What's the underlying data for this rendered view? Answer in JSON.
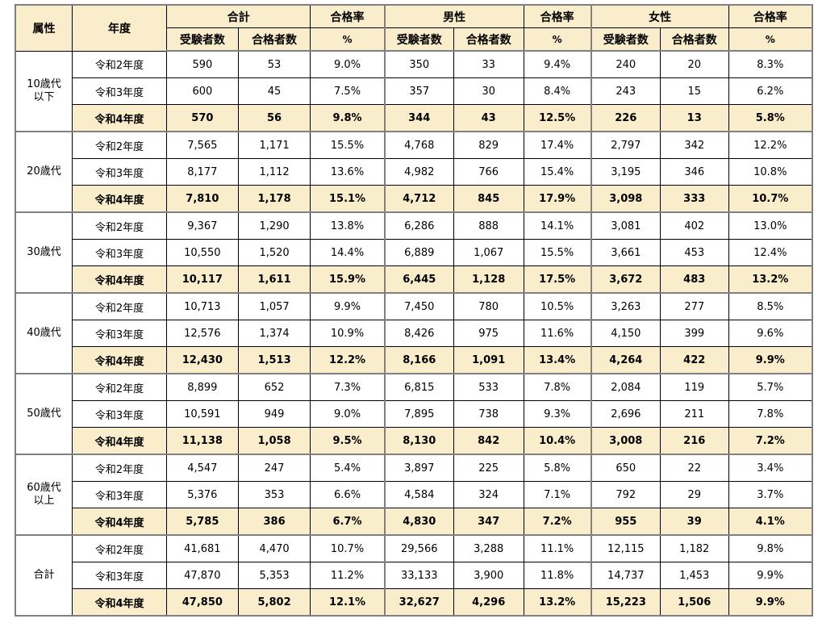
{
  "chart_data": {
    "type": "table",
    "header": {
      "attribute": "属性",
      "year": "年度",
      "total": "合計",
      "male": "男性",
      "female": "女性",
      "pass_rate": "合格率",
      "examinees": "受験者数",
      "passers": "合格者数",
      "percent": "%"
    },
    "groups": [
      {
        "label_lines": [
          "10歳代",
          "以下"
        ],
        "rows": [
          {
            "year": "令和2年度",
            "highlight": false,
            "values": [
              "590",
              "53",
              "9.0%",
              "350",
              "33",
              "9.4%",
              "240",
              "20",
              "8.3%"
            ]
          },
          {
            "year": "令和3年度",
            "highlight": false,
            "values": [
              "600",
              "45",
              "7.5%",
              "357",
              "30",
              "8.4%",
              "243",
              "15",
              "6.2%"
            ]
          },
          {
            "year": "令和4年度",
            "highlight": true,
            "values": [
              "570",
              "56",
              "9.8%",
              "344",
              "43",
              "12.5%",
              "226",
              "13",
              "5.8%"
            ]
          }
        ]
      },
      {
        "label_lines": [
          "20歳代"
        ],
        "rows": [
          {
            "year": "令和2年度",
            "highlight": false,
            "values": [
              "7,565",
              "1,171",
              "15.5%",
              "4,768",
              "829",
              "17.4%",
              "2,797",
              "342",
              "12.2%"
            ]
          },
          {
            "year": "令和3年度",
            "highlight": false,
            "values": [
              "8,177",
              "1,112",
              "13.6%",
              "4,982",
              "766",
              "15.4%",
              "3,195",
              "346",
              "10.8%"
            ]
          },
          {
            "year": "令和4年度",
            "highlight": true,
            "values": [
              "7,810",
              "1,178",
              "15.1%",
              "4,712",
              "845",
              "17.9%",
              "3,098",
              "333",
              "10.7%"
            ]
          }
        ]
      },
      {
        "label_lines": [
          "30歳代"
        ],
        "rows": [
          {
            "year": "令和2年度",
            "highlight": false,
            "values": [
              "9,367",
              "1,290",
              "13.8%",
              "6,286",
              "888",
              "14.1%",
              "3,081",
              "402",
              "13.0%"
            ]
          },
          {
            "year": "令和3年度",
            "highlight": false,
            "values": [
              "10,550",
              "1,520",
              "14.4%",
              "6,889",
              "1,067",
              "15.5%",
              "3,661",
              "453",
              "12.4%"
            ]
          },
          {
            "year": "令和4年度",
            "highlight": true,
            "values": [
              "10,117",
              "1,611",
              "15.9%",
              "6,445",
              "1,128",
              "17.5%",
              "3,672",
              "483",
              "13.2%"
            ]
          }
        ]
      },
      {
        "label_lines": [
          "40歳代"
        ],
        "rows": [
          {
            "year": "令和2年度",
            "highlight": false,
            "values": [
              "10,713",
              "1,057",
              "9.9%",
              "7,450",
              "780",
              "10.5%",
              "3,263",
              "277",
              "8.5%"
            ]
          },
          {
            "year": "令和3年度",
            "highlight": false,
            "values": [
              "12,576",
              "1,374",
              "10.9%",
              "8,426",
              "975",
              "11.6%",
              "4,150",
              "399",
              "9.6%"
            ]
          },
          {
            "year": "令和4年度",
            "highlight": true,
            "values": [
              "12,430",
              "1,513",
              "12.2%",
              "8,166",
              "1,091",
              "13.4%",
              "4,264",
              "422",
              "9.9%"
            ]
          }
        ]
      },
      {
        "label_lines": [
          "50歳代"
        ],
        "rows": [
          {
            "year": "令和2年度",
            "highlight": false,
            "values": [
              "8,899",
              "652",
              "7.3%",
              "6,815",
              "533",
              "7.8%",
              "2,084",
              "119",
              "5.7%"
            ]
          },
          {
            "year": "令和3年度",
            "highlight": false,
            "values": [
              "10,591",
              "949",
              "9.0%",
              "7,895",
              "738",
              "9.3%",
              "2,696",
              "211",
              "7.8%"
            ]
          },
          {
            "year": "令和4年度",
            "highlight": true,
            "values": [
              "11,138",
              "1,058",
              "9.5%",
              "8,130",
              "842",
              "10.4%",
              "3,008",
              "216",
              "7.2%"
            ]
          }
        ]
      },
      {
        "label_lines": [
          "60歳代",
          "以上"
        ],
        "rows": [
          {
            "year": "令和2年度",
            "highlight": false,
            "values": [
              "4,547",
              "247",
              "5.4%",
              "3,897",
              "225",
              "5.8%",
              "650",
              "22",
              "3.4%"
            ]
          },
          {
            "year": "令和3年度",
            "highlight": false,
            "values": [
              "5,376",
              "353",
              "6.6%",
              "4,584",
              "324",
              "7.1%",
              "792",
              "29",
              "3.7%"
            ]
          },
          {
            "year": "令和4年度",
            "highlight": true,
            "values": [
              "5,785",
              "386",
              "6.7%",
              "4,830",
              "347",
              "7.2%",
              "955",
              "39",
              "4.1%"
            ]
          }
        ]
      },
      {
        "label_lines": [
          "合計"
        ],
        "rows": [
          {
            "year": "令和2年度",
            "highlight": false,
            "values": [
              "41,681",
              "4,470",
              "10.7%",
              "29,566",
              "3,288",
              "11.1%",
              "12,115",
              "1,182",
              "9.8%"
            ]
          },
          {
            "year": "令和3年度",
            "highlight": false,
            "values": [
              "47,870",
              "5,353",
              "11.2%",
              "33,133",
              "3,900",
              "11.8%",
              "14,737",
              "1,453",
              "9.9%"
            ]
          },
          {
            "year": "令和4年度",
            "highlight": true,
            "values": [
              "47,850",
              "5,802",
              "12.1%",
              "32,627",
              "4,296",
              "13.2%",
              "15,223",
              "1,506",
              "9.9%"
            ]
          }
        ]
      }
    ]
  },
  "colors": {
    "highlight_bg": "#FAEDCB",
    "border_thick": "#808080",
    "border_thin": "#000000"
  }
}
